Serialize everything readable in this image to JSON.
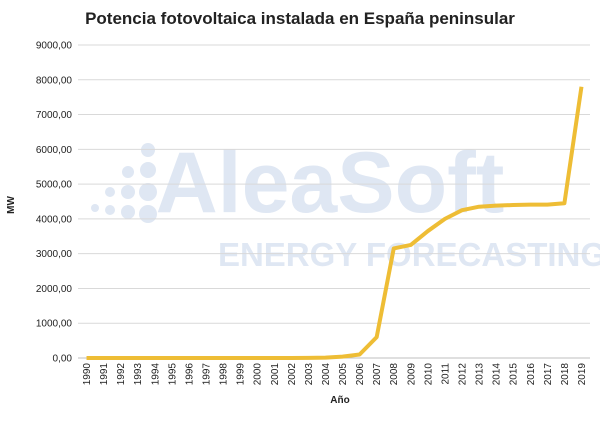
{
  "chart_data": {
    "type": "line",
    "title": "Potencia fotovoltaica instalada en España peninsular",
    "x_label": "Año",
    "y_label": "MW",
    "watermark": [
      "AleaSoft",
      "ENERGY FORECASTING"
    ],
    "categories": [
      "1990",
      "1991",
      "1992",
      "1993",
      "1994",
      "1995",
      "1996",
      "1997",
      "1998",
      "1999",
      "2000",
      "2001",
      "2002",
      "2003",
      "2004",
      "2005",
      "2006",
      "2007",
      "2008",
      "2009",
      "2010",
      "2011",
      "2012",
      "2013",
      "2014",
      "2015",
      "2016",
      "2017",
      "2018",
      "2019"
    ],
    "series": [
      {
        "name": "Potencia fotovoltaica",
        "color": "#eebd35",
        "values": [
          0,
          0,
          0,
          0,
          0,
          0,
          0,
          0,
          0,
          0,
          0,
          0,
          0,
          5,
          10,
          40,
          100,
          600,
          3150,
          3250,
          3650,
          4000,
          4250,
          4350,
          4380,
          4400,
          4410,
          4410,
          4450,
          7800
        ]
      }
    ],
    "ylim": [
      0,
      9000
    ],
    "yticks": [
      {
        "value": 0,
        "label": "0,00"
      },
      {
        "value": 1000,
        "label": "1000,00"
      },
      {
        "value": 2000,
        "label": "2000,00"
      },
      {
        "value": 3000,
        "label": "3000,00"
      },
      {
        "value": 4000,
        "label": "4000,00"
      },
      {
        "value": 5000,
        "label": "5000,00"
      },
      {
        "value": 6000,
        "label": "6000,00"
      },
      {
        "value": 7000,
        "label": "7000,00"
      },
      {
        "value": 8000,
        "label": "8000,00"
      },
      {
        "value": 9000,
        "label": "9000,00"
      }
    ],
    "grid": true
  }
}
